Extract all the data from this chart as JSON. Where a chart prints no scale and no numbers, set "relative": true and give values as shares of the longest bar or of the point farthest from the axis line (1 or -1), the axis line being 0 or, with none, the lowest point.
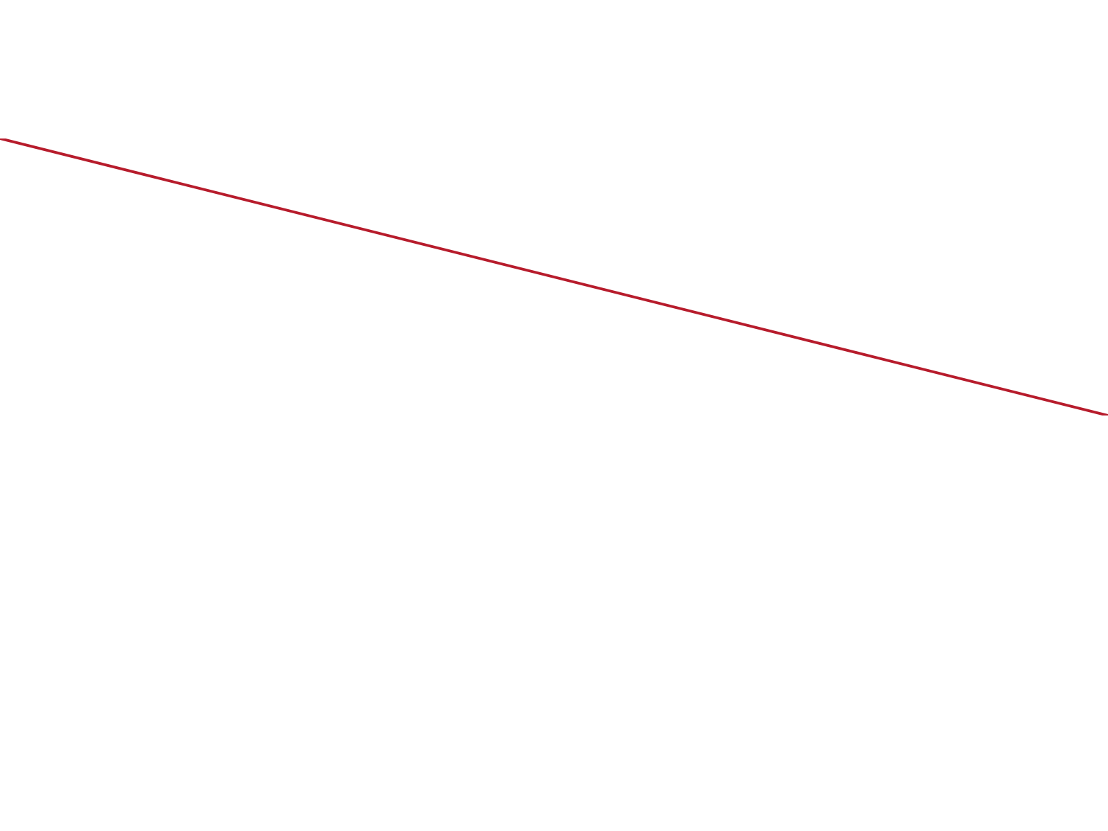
{
  "chart_data": {
    "type": "line",
    "relative": true,
    "categories": [
      null,
      null
    ],
    "values": [
      1,
      0
    ],
    "color": "#b71c2c"
  }
}
